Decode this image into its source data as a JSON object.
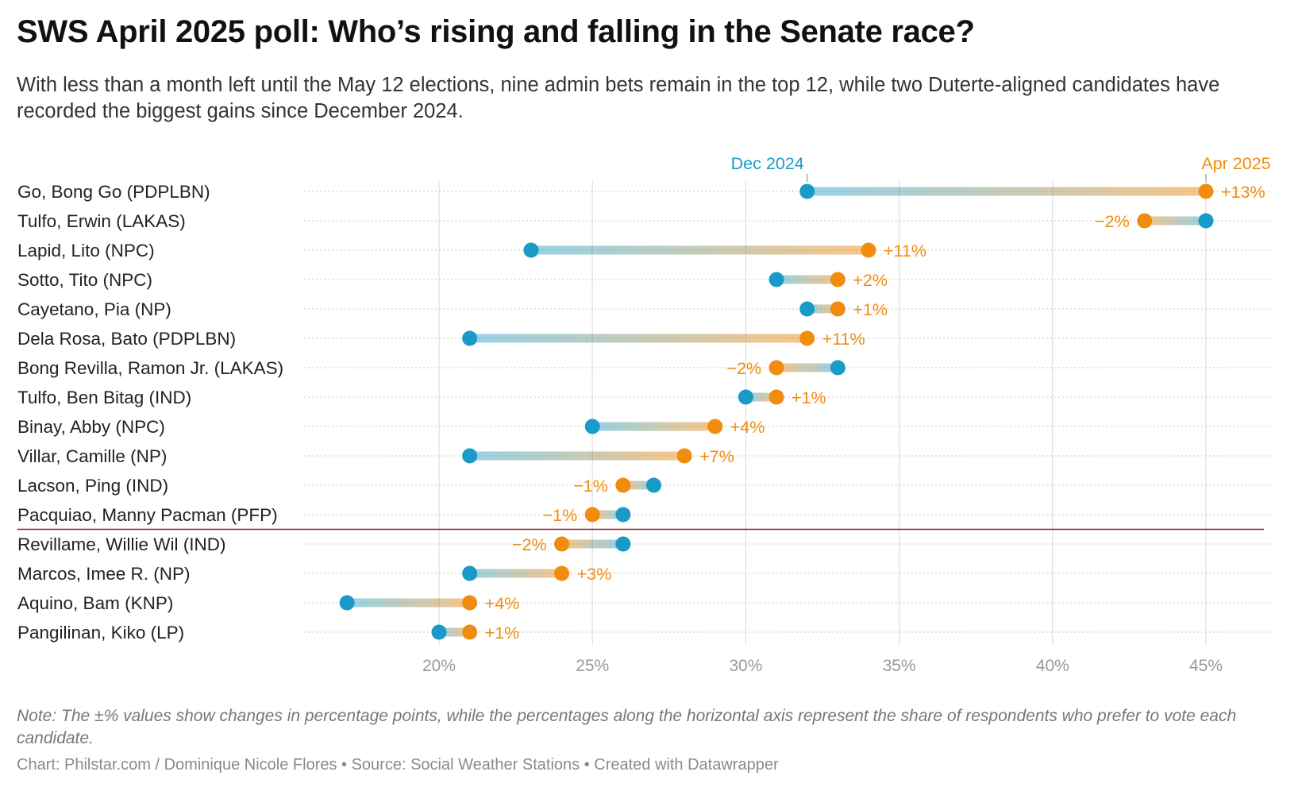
{
  "title": "SWS April 2025 poll: Who’s rising and falling in the Senate race?",
  "subtitle": "With less than a month left until the May 12 elections, nine admin bets remain in the top 12, while two Duterte-aligned candidates have recorded the biggest gains since December 2024.",
  "note": "Note: The ±% values show changes in percentage points, while the percentages along the horizontal axis represent the share of respondents who prefer to vote each candidate.",
  "source": "Chart: Philstar.com / Dominique Nicole Flores • Source: Social Weather Stations • Created with Datawrapper",
  "colors": {
    "dec": "#1a9bc7",
    "apr": "#f28c10",
    "cutoff": "#8b1a2b",
    "grid": "#dddddd",
    "axis_text": "#999999"
  },
  "chart_data": {
    "type": "dot-range",
    "series": [
      {
        "name": "Dec 2024",
        "key": "dec"
      },
      {
        "name": "Apr 2025",
        "key": "apr"
      }
    ],
    "x_ticks": [
      {
        "value": 20,
        "label": "20%"
      },
      {
        "value": 25,
        "label": "25%"
      },
      {
        "value": 30,
        "label": "30%"
      },
      {
        "value": 35,
        "label": "35%"
      },
      {
        "value": 40,
        "label": "40%"
      },
      {
        "value": 45,
        "label": "45%"
      }
    ],
    "xlim": [
      15.6,
      47.2
    ],
    "cutoff_after_rank": 12,
    "rows": [
      {
        "name": "Go, Bong Go (PDPLBN)",
        "dec": 32,
        "apr": 45,
        "change": "+13%"
      },
      {
        "name": "Tulfo, Erwin (LAKAS)",
        "dec": 45,
        "apr": 43,
        "change": "−2%"
      },
      {
        "name": "Lapid, Lito (NPC)",
        "dec": 23,
        "apr": 34,
        "change": "+11%"
      },
      {
        "name": "Sotto, Tito (NPC)",
        "dec": 31,
        "apr": 33,
        "change": "+2%"
      },
      {
        "name": "Cayetano, Pia (NP)",
        "dec": 32,
        "apr": 33,
        "change": "+1%"
      },
      {
        "name": "Dela Rosa, Bato (PDPLBN)",
        "dec": 21,
        "apr": 32,
        "change": "+11%"
      },
      {
        "name": "Bong Revilla, Ramon Jr. (LAKAS)",
        "dec": 33,
        "apr": 31,
        "change": "−2%"
      },
      {
        "name": "Tulfo, Ben Bitag (IND)",
        "dec": 30,
        "apr": 31,
        "change": "+1%"
      },
      {
        "name": "Binay, Abby (NPC)",
        "dec": 25,
        "apr": 29,
        "change": "+4%"
      },
      {
        "name": "Villar, Camille (NP)",
        "dec": 21,
        "apr": 28,
        "change": "+7%"
      },
      {
        "name": "Lacson, Ping (IND)",
        "dec": 27,
        "apr": 26,
        "change": "−1%"
      },
      {
        "name": "Pacquiao, Manny Pacman (PFP)",
        "dec": 26,
        "apr": 25,
        "change": "−1%"
      },
      {
        "name": "Revillame, Willie Wil (IND)",
        "dec": 26,
        "apr": 24,
        "change": "−2%"
      },
      {
        "name": "Marcos, Imee R. (NP)",
        "dec": 21,
        "apr": 24,
        "change": "+3%"
      },
      {
        "name": "Aquino, Bam (KNP)",
        "dec": 17,
        "apr": 21,
        "change": "+4%"
      },
      {
        "name": "Pangilinan, Kiko (LP)",
        "dec": 20,
        "apr": 21,
        "change": "+1%"
      }
    ]
  }
}
